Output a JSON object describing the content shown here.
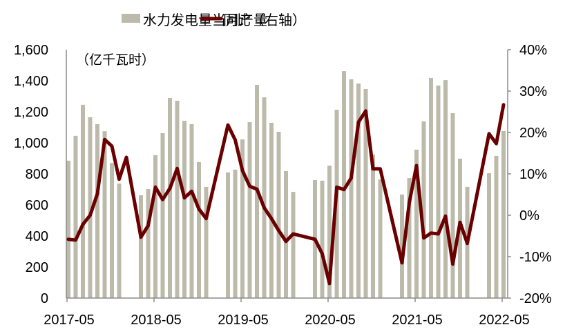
{
  "chart_data": {
    "type": "bar+line",
    "title": "",
    "legend": [
      {
        "name": "水力发电量当月产量",
        "type": "bar",
        "color": "#bcbbab"
      },
      {
        "name": "同比（右轴）",
        "type": "line",
        "color": "#6b0000"
      }
    ],
    "legend_position": "top",
    "unit_label": "（亿千瓦时）",
    "xlabel": "",
    "ylabel": "",
    "y_left": {
      "min": 0,
      "max": 1600,
      "ticks": [
        "0",
        "200",
        "400",
        "600",
        "800",
        "1,000",
        "1,200",
        "1,400",
        "1,600"
      ]
    },
    "y_right": {
      "min": -20,
      "max": 40,
      "ticks": [
        "-20%",
        "-10%",
        "0%",
        "10%",
        "20%",
        "30%",
        "40%"
      ]
    },
    "x_tick_labels": [
      "2017-05",
      "2018-05",
      "2019-05",
      "2020-05",
      "2021-05",
      "2022-05"
    ],
    "grid": false,
    "x": [
      "2017-05",
      "2017-06",
      "2017-07",
      "2017-08",
      "2017-09",
      "2017-10",
      "2017-11",
      "2017-12",
      "2018-01",
      "2018-02",
      "2018-03",
      "2018-04",
      "2018-05",
      "2018-06",
      "2018-07",
      "2018-08",
      "2018-09",
      "2018-10",
      "2018-11",
      "2018-12",
      "2019-01",
      "2019-02",
      "2019-03",
      "2019-04",
      "2019-05",
      "2019-06",
      "2019-07",
      "2019-08",
      "2019-09",
      "2019-10",
      "2019-11",
      "2019-12",
      "2020-01",
      "2020-02",
      "2020-03",
      "2020-04",
      "2020-05",
      "2020-06",
      "2020-07",
      "2020-08",
      "2020-09",
      "2020-10",
      "2020-11",
      "2020-12",
      "2021-01",
      "2021-02",
      "2021-03",
      "2021-04",
      "2021-05",
      "2021-06",
      "2021-07",
      "2021-08",
      "2021-09",
      "2021-10",
      "2021-11",
      "2021-12",
      "2022-01",
      "2022-02",
      "2022-03",
      "2022-04",
      "2022-05"
    ],
    "series": [
      {
        "name": "水力发电量当月产量",
        "axis": "left",
        "type": "bar",
        "values": [
          885,
          1045,
          1245,
          1165,
          1120,
          1075,
          870,
          738,
          null,
          null,
          662,
          702,
          920,
          1062,
          1289,
          1271,
          1142,
          1120,
          876,
          716,
          null,
          null,
          809,
          827,
          1022,
          1133,
          1373,
          1293,
          1129,
          1071,
          818,
          684,
          null,
          null,
          760,
          756,
          853,
          1213,
          1462,
          1409,
          1382,
          1347,
          925,
          764,
          null,
          null,
          667,
          773,
          956,
          1138,
          1418,
          1369,
          1404,
          1191,
          898,
          716,
          null,
          null,
          804,
          916,
          1076
        ]
      },
      {
        "name": "同比（右轴）",
        "axis": "right",
        "type": "line",
        "values": [
          -5.8,
          -6.0,
          -2.2,
          0.0,
          5.2,
          18.3,
          16.7,
          8.7,
          14.0,
          null,
          -5.3,
          -2.5,
          6.8,
          3.8,
          6.5,
          11.3,
          4.2,
          5.8,
          1.5,
          -0.8,
          null,
          null,
          21.8,
          18.2,
          10.8,
          7.0,
          6.3,
          1.8,
          -0.8,
          -3.7,
          -6.3,
          -4.5,
          null,
          null,
          -5.8,
          -9.3,
          -16.5,
          6.8,
          6.2,
          9.0,
          22.5,
          25.2,
          11.2,
          11.2,
          null,
          null,
          -11.5,
          3.0,
          12.0,
          -5.5,
          -4.3,
          -4.5,
          -0.2,
          -11.8,
          -1.7,
          -6.8,
          null,
          null,
          19.7,
          17.3,
          26.7
        ]
      }
    ]
  }
}
